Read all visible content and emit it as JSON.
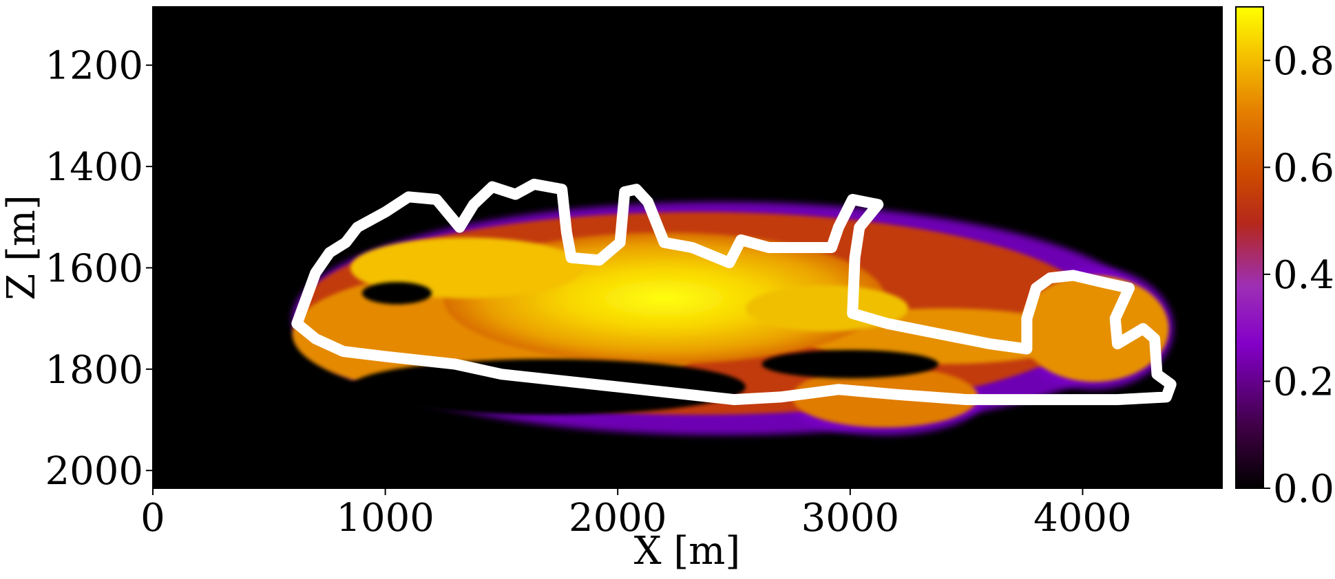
{
  "chart_data": {
    "type": "heatmap",
    "xlabel": "X [m]",
    "ylabel": "Z [m]",
    "xlim": [
      0,
      4600
    ],
    "ylim": [
      2035,
      1085
    ],
    "y_inverted": true,
    "x_ticks": [
      0,
      1000,
      2000,
      3000,
      4000
    ],
    "x_tick_labels": [
      "0",
      "1000",
      "2000",
      "3000",
      "4000"
    ],
    "y_ticks": [
      1200,
      1400,
      1600,
      1800,
      2000
    ],
    "y_tick_labels": [
      "1200",
      "1400",
      "1600",
      "1800",
      "2000"
    ],
    "grid": false,
    "colormap": "gnuplot",
    "background_color": "#000000",
    "colorbar": {
      "range": [
        0.0,
        0.9
      ],
      "ticks": [
        0.0,
        0.2,
        0.4,
        0.6,
        0.8
      ],
      "tick_labels": [
        "0.0",
        "0.2",
        "0.4",
        "0.6",
        "0.8"
      ],
      "stops": [
        "#000000",
        "#3c0040",
        "#8400c8",
        "#9d2fb5",
        "#b5281c",
        "#cc4a00",
        "#e47e00",
        "#f5c200",
        "#ffff00"
      ]
    },
    "plume_extent": {
      "x_range": [
        620,
        4400
      ],
      "z_range": [
        1410,
        1920
      ],
      "peak_value": 0.9,
      "peak_region_x": [
        1500,
        2700
      ],
      "peak_region_z": [
        1560,
        1700
      ]
    },
    "contour": {
      "color": "#ffffff",
      "description": "white outline contour",
      "points": [
        [
          620,
          1710
        ],
        [
          700,
          1610
        ],
        [
          760,
          1570
        ],
        [
          830,
          1550
        ],
        [
          880,
          1520
        ],
        [
          1000,
          1490
        ],
        [
          1100,
          1460
        ],
        [
          1220,
          1465
        ],
        [
          1320,
          1520
        ],
        [
          1380,
          1475
        ],
        [
          1460,
          1440
        ],
        [
          1560,
          1455
        ],
        [
          1640,
          1435
        ],
        [
          1760,
          1445
        ],
        [
          1780,
          1530
        ],
        [
          1800,
          1580
        ],
        [
          1920,
          1585
        ],
        [
          2010,
          1550
        ],
        [
          2030,
          1450
        ],
        [
          2080,
          1445
        ],
        [
          2130,
          1470
        ],
        [
          2200,
          1550
        ],
        [
          2320,
          1560
        ],
        [
          2480,
          1590
        ],
        [
          2530,
          1545
        ],
        [
          2650,
          1560
        ],
        [
          2760,
          1560
        ],
        [
          2920,
          1560
        ],
        [
          2950,
          1520
        ],
        [
          3010,
          1465
        ],
        [
          3120,
          1475
        ],
        [
          3040,
          1520
        ],
        [
          3020,
          1580
        ],
        [
          3010,
          1690
        ],
        [
          3160,
          1710
        ],
        [
          3380,
          1730
        ],
        [
          3600,
          1750
        ],
        [
          3760,
          1760
        ],
        [
          3760,
          1700
        ],
        [
          3800,
          1640
        ],
        [
          3860,
          1620
        ],
        [
          3960,
          1615
        ],
        [
          4100,
          1630
        ],
        [
          4200,
          1640
        ],
        [
          4140,
          1700
        ],
        [
          4150,
          1750
        ],
        [
          4260,
          1720
        ],
        [
          4310,
          1740
        ],
        [
          4320,
          1810
        ],
        [
          4380,
          1830
        ],
        [
          4360,
          1855
        ],
        [
          4150,
          1860
        ],
        [
          3900,
          1860
        ],
        [
          3500,
          1860
        ],
        [
          3200,
          1850
        ],
        [
          2950,
          1840
        ],
        [
          2700,
          1855
        ],
        [
          2500,
          1860
        ],
        [
          2200,
          1845
        ],
        [
          2000,
          1835
        ],
        [
          1700,
          1820
        ],
        [
          1500,
          1810
        ],
        [
          1300,
          1790
        ],
        [
          1000,
          1775
        ],
        [
          820,
          1765
        ],
        [
          700,
          1740
        ],
        [
          620,
          1710
        ]
      ]
    }
  }
}
